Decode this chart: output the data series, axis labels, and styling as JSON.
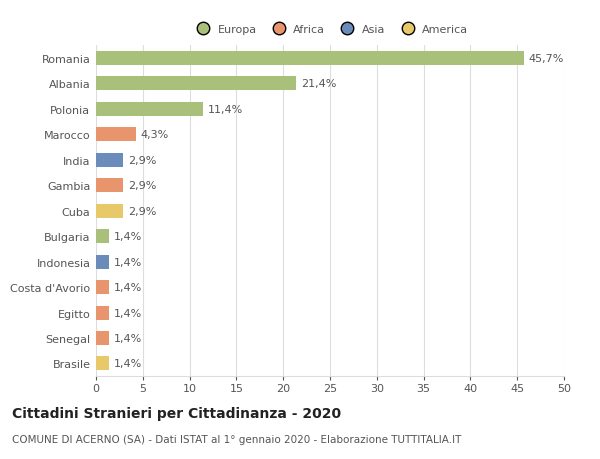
{
  "categories": [
    "Brasile",
    "Senegal",
    "Egitto",
    "Costa d'Avorio",
    "Indonesia",
    "Bulgaria",
    "Cuba",
    "Gambia",
    "India",
    "Marocco",
    "Polonia",
    "Albania",
    "Romania"
  ],
  "values": [
    1.4,
    1.4,
    1.4,
    1.4,
    1.4,
    1.4,
    2.9,
    2.9,
    2.9,
    4.3,
    11.4,
    21.4,
    45.7
  ],
  "labels": [
    "1,4%",
    "1,4%",
    "1,4%",
    "1,4%",
    "1,4%",
    "1,4%",
    "2,9%",
    "2,9%",
    "2,9%",
    "4,3%",
    "11,4%",
    "21,4%",
    "45,7%"
  ],
  "colors": [
    "#e8c96a",
    "#e8956d",
    "#e8956d",
    "#e8956d",
    "#6b8cba",
    "#a8c07a",
    "#e8c96a",
    "#e8956d",
    "#6b8cba",
    "#e8956d",
    "#a8c07a",
    "#a8c07a",
    "#a8c07a"
  ],
  "legend": [
    {
      "label": "Europa",
      "color": "#a8c07a"
    },
    {
      "label": "Africa",
      "color": "#e8956d"
    },
    {
      "label": "Asia",
      "color": "#6b8cba"
    },
    {
      "label": "America",
      "color": "#e8c96a"
    }
  ],
  "xlim": [
    0,
    50
  ],
  "xticks": [
    0,
    5,
    10,
    15,
    20,
    25,
    30,
    35,
    40,
    45,
    50
  ],
  "title": "Cittadini Stranieri per Cittadinanza - 2020",
  "subtitle": "COMUNE DI ACERNO (SA) - Dati ISTAT al 1° gennaio 2020 - Elaborazione TUTTITALIA.IT",
  "background_color": "#ffffff",
  "bar_height": 0.55,
  "grid_color": "#dddddd",
  "label_fontsize": 8,
  "tick_fontsize": 8,
  "title_fontsize": 10,
  "subtitle_fontsize": 7.5,
  "text_color": "#555555"
}
